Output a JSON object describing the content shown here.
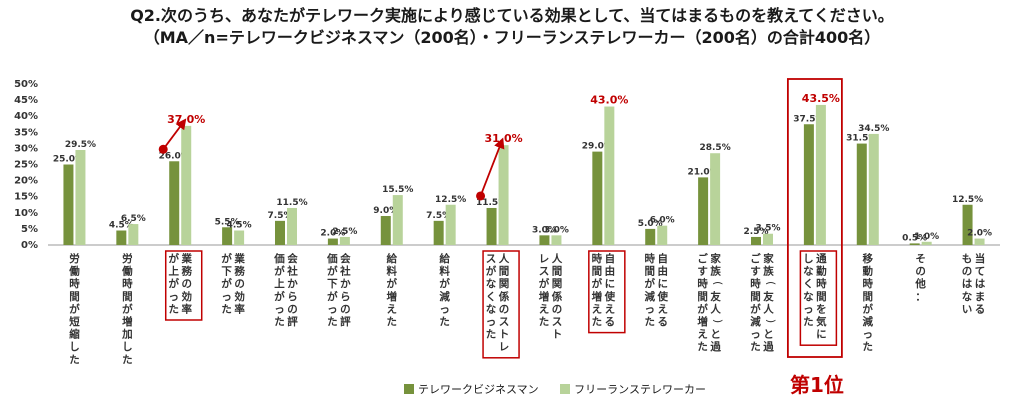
{
  "header": {
    "line1": "Q2.次のうち、あなたがテレワーク実施により感じている効果として、当てはまるものを教えてください。",
    "line2": "（MA／n=テレワークビジネスマン（200名）・フリーランステレワーカー（200名）の合計400名）"
  },
  "chart_data": {
    "type": "bar",
    "ylim": [
      0,
      50
    ],
    "yticks": [
      "0%",
      "5%",
      "10%",
      "15%",
      "20%",
      "25%",
      "30%",
      "35%",
      "40%",
      "45%",
      "50%"
    ],
    "categories": [
      "労働時間が短縮した",
      "労働時間が増加した",
      "業務の効率が上がった",
      "業務の効率が下がった",
      "会社からの評価が上がった",
      "会社からの評価が下がった",
      "給料が増えた",
      "給料が減った",
      "人間関係のストレスがなくなった",
      "人間関係のストレスが増えた",
      "自由に使える時間が増えた",
      "自由に使える時間が減った",
      "家族（友人）と過ごす時間が増えた",
      "家族（友人）と過ごす時間が減った",
      "通勤時間を気にしなくなった",
      "移動時間が減った",
      "その他：",
      "当てはまるものはない"
    ],
    "series": [
      {
        "name": "テレワークビジネスマン",
        "color": "#76923c",
        "values": [
          25.0,
          4.5,
          26.0,
          5.5,
          7.5,
          2.0,
          9.0,
          7.5,
          11.5,
          3.0,
          29.0,
          5.0,
          21.0,
          2.5,
          37.5,
          31.5,
          0.5,
          12.5
        ]
      },
      {
        "name": "フリーランステレワーカー",
        "color": "#b8d39a",
        "values": [
          29.5,
          6.5,
          37.0,
          4.5,
          11.5,
          2.5,
          15.5,
          12.5,
          31.0,
          3.0,
          43.0,
          6.0,
          28.5,
          3.5,
          43.5,
          34.5,
          1.0,
          2.0
        ]
      }
    ],
    "value_labels": [
      [
        "25.0%",
        "4.5%",
        "26.0%",
        "5.5%",
        "7.5%",
        "2.0%",
        "9.0%",
        "7.5%",
        "11.5%",
        "3.0%",
        "29.0%",
        "5.0%",
        "21.0%",
        "2.5%",
        "37.5%",
        "31.5%",
        "0.5%",
        "12.5%"
      ],
      [
        "29.5%",
        "6.5%",
        "37.0%",
        "4.5%",
        "11.5%",
        "2.5%",
        "15.5%",
        "12.5%",
        "31.0%",
        "3.0%",
        "43.0%",
        "6.0%",
        "28.5%",
        "3.5%",
        "43.5%",
        "34.5%",
        "1.0%",
        "2.0%"
      ]
    ],
    "highlighted_categories": [
      2,
      8,
      10,
      14
    ],
    "highlight_color": "#c00000",
    "arrow_categories": [
      2,
      8
    ],
    "rank_label": "第1位",
    "grid": false,
    "legend_position": "bottom"
  }
}
